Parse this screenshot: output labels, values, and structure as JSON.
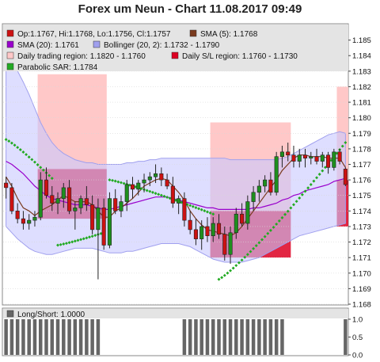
{
  "title": "Forex um Neun - Chart 11.08.2017 09:49",
  "legend": {
    "ohlc": "Op:1.1767, Hi:1.1768, Lo:1.1756, Cl:1.1757",
    "sma5": "SMA (5): 1.1768",
    "sma20": "SMA (20): 1.1761",
    "bollinger": "Bollinger (20, 2): 1.1732 - 1.1790",
    "daily_trading": "Daily trading region: 1.1820 - 1.1760",
    "daily_sl": "Daily S/L region: 1.1760 - 1.1730",
    "sar": "Parabolic SAR: 1.1784",
    "longshort": "Long/Short: 1.0000"
  },
  "colors": {
    "bull": "#1e8f1e",
    "bear": "#cc1111",
    "sma5": "#7a3b1e",
    "sma20": "#9900cc",
    "band_fill": "#c8c8ff",
    "band_line": "#a0a0ee",
    "trading_region": "#ffc8c8",
    "sl_region": "#dd0022",
    "sar": "#22aa22",
    "longshort": "#666666"
  },
  "chart_data": [
    {
      "type": "candlestick",
      "title": "Forex um Neun - Chart 11.08.2017 09:49",
      "ylim": [
        1.168,
        1.186
      ],
      "yticks": [
        "1.168",
        "1.169",
        "1.170",
        "1.171",
        "1.172",
        "1.173",
        "1.174",
        "1.175",
        "1.176",
        "1.177",
        "1.178",
        "1.179",
        "1.180",
        "1.181",
        "1.182",
        "1.183",
        "1.184",
        "1.185"
      ],
      "candles": [
        [
          1.1758,
          1.1762,
          1.1748,
          1.1755
        ],
        [
          1.1755,
          1.1758,
          1.1738,
          1.174
        ],
        [
          1.174,
          1.1745,
          1.1732,
          1.1735
        ],
        [
          1.1735,
          1.174,
          1.1728,
          1.1732
        ],
        [
          1.1732,
          1.1738,
          1.1728,
          1.1734
        ],
        [
          1.1734,
          1.174,
          1.173,
          1.1736
        ],
        [
          1.1736,
          1.1765,
          1.1734,
          1.176
        ],
        [
          1.176,
          1.1768,
          1.1748,
          1.175
        ],
        [
          1.175,
          1.1756,
          1.174,
          1.1745
        ],
        [
          1.1745,
          1.1752,
          1.1738,
          1.1748
        ],
        [
          1.1748,
          1.1758,
          1.1742,
          1.1755
        ],
        [
          1.1755,
          1.176,
          1.1738,
          1.174
        ],
        [
          1.174,
          1.1746,
          1.1728,
          1.1742
        ],
        [
          1.1742,
          1.175,
          1.1738,
          1.1748
        ],
        [
          1.1748,
          1.1756,
          1.174,
          1.1744
        ],
        [
          1.1744,
          1.175,
          1.1725,
          1.1728
        ],
        [
          1.1728,
          1.1748,
          1.1696,
          1.1742
        ],
        [
          1.1742,
          1.1748,
          1.1715,
          1.1718
        ],
        [
          1.1718,
          1.1752,
          1.1716,
          1.1748
        ],
        [
          1.1748,
          1.1754,
          1.1738,
          1.174
        ],
        [
          1.174,
          1.175,
          1.1736,
          1.1746
        ],
        [
          1.1746,
          1.176,
          1.174,
          1.1757
        ],
        [
          1.1757,
          1.1762,
          1.1748,
          1.1754
        ],
        [
          1.1754,
          1.176,
          1.175,
          1.1758
        ],
        [
          1.1758,
          1.1764,
          1.1752,
          1.176
        ],
        [
          1.176,
          1.1765,
          1.1756,
          1.1762
        ],
        [
          1.1762,
          1.177,
          1.1758,
          1.1764
        ],
        [
          1.1764,
          1.1768,
          1.1756,
          1.176
        ],
        [
          1.176,
          1.1764,
          1.1754,
          1.1756
        ],
        [
          1.1756,
          1.1762,
          1.1742,
          1.1745
        ],
        [
          1.1745,
          1.175,
          1.1738,
          1.1748
        ],
        [
          1.1748,
          1.1752,
          1.173,
          1.1734
        ],
        [
          1.1734,
          1.174,
          1.1725,
          1.1728
        ],
        [
          1.1728,
          1.1735,
          1.1718,
          1.1722
        ],
        [
          1.1722,
          1.1734,
          1.1715,
          1.173
        ],
        [
          1.173,
          1.1736,
          1.172,
          1.1724
        ],
        [
          1.1724,
          1.1736,
          1.172,
          1.1732
        ],
        [
          1.1732,
          1.1738,
          1.1722,
          1.1725
        ],
        [
          1.1725,
          1.173,
          1.1708,
          1.1712
        ],
        [
          1.1712,
          1.173,
          1.1706,
          1.1726
        ],
        [
          1.1726,
          1.1742,
          1.1722,
          1.1738
        ],
        [
          1.1738,
          1.1745,
          1.173,
          1.1732
        ],
        [
          1.1732,
          1.175,
          1.1728,
          1.1746
        ],
        [
          1.1746,
          1.1756,
          1.174,
          1.1752
        ],
        [
          1.1752,
          1.176,
          1.1746,
          1.1756
        ],
        [
          1.1756,
          1.1763,
          1.1752,
          1.176
        ],
        [
          1.176,
          1.1765,
          1.175,
          1.1752
        ],
        [
          1.1752,
          1.1778,
          1.175,
          1.1775
        ],
        [
          1.1775,
          1.1782,
          1.1768,
          1.1778
        ],
        [
          1.1778,
          1.1784,
          1.1772,
          1.1776
        ],
        [
          1.1776,
          1.1782,
          1.1768,
          1.1772
        ],
        [
          1.1772,
          1.178,
          1.1768,
          1.1776
        ],
        [
          1.1776,
          1.178,
          1.1768,
          1.1774
        ],
        [
          1.1774,
          1.1778,
          1.177,
          1.1775
        ],
        [
          1.1775,
          1.178,
          1.177,
          1.1772
        ],
        [
          1.1772,
          1.1778,
          1.1768,
          1.1776
        ],
        [
          1.1776,
          1.1778,
          1.1764,
          1.1768
        ],
        [
          1.1768,
          1.178,
          1.1766,
          1.1778
        ],
        [
          1.1778,
          1.178,
          1.177,
          1.1772
        ],
        [
          1.1767,
          1.1768,
          1.1756,
          1.1757
        ]
      ],
      "sma5": [
        1.1762,
        1.1756,
        1.1748,
        1.1742,
        1.174,
        1.1737,
        1.174,
        1.1742,
        1.1744,
        1.1747,
        1.175,
        1.1748,
        1.1746,
        1.1746,
        1.1746,
        1.1744,
        1.174,
        1.1736,
        1.1736,
        1.174,
        1.1742,
        1.1745,
        1.1748,
        1.1752,
        1.1756,
        1.1758,
        1.176,
        1.1761,
        1.176,
        1.1756,
        1.1752,
        1.1747,
        1.174,
        1.1735,
        1.1731,
        1.1728,
        1.1727,
        1.1726,
        1.1725,
        1.1724,
        1.1726,
        1.173,
        1.1735,
        1.174,
        1.1745,
        1.175,
        1.1755,
        1.176,
        1.1766,
        1.177,
        1.1774,
        1.1776,
        1.1776,
        1.1775,
        1.1775,
        1.1775,
        1.1774,
        1.1774,
        1.1774,
        1.1768
      ],
      "sma20": [
        1.1772,
        1.177,
        1.1767,
        1.1764,
        1.176,
        1.1756,
        1.1753,
        1.175,
        1.1748,
        1.1747,
        1.1746,
        1.1745,
        1.1744,
        1.1744,
        1.1744,
        1.1743,
        1.1742,
        1.1741,
        1.1741,
        1.1742,
        1.1743,
        1.1744,
        1.1745,
        1.1746,
        1.1747,
        1.1748,
        1.1749,
        1.1749,
        1.1749,
        1.1748,
        1.1747,
        1.1746,
        1.1745,
        1.1744,
        1.1743,
        1.1742,
        1.1742,
        1.1741,
        1.1741,
        1.1741,
        1.1741,
        1.1741,
        1.1741,
        1.1742,
        1.1742,
        1.1743,
        1.1744,
        1.1745,
        1.1747,
        1.1748,
        1.175,
        1.1751,
        1.1753,
        1.1754,
        1.1755,
        1.1756,
        1.1757,
        1.1759,
        1.176,
        1.1761
      ],
      "bb_upper": [
        1.1838,
        1.1835,
        1.183,
        1.1823,
        1.1815,
        1.1806,
        1.1797,
        1.179,
        1.1784,
        1.178,
        1.1777,
        1.1775,
        1.1773,
        1.1772,
        1.1771,
        1.1771,
        1.177,
        1.177,
        1.177,
        1.177,
        1.177,
        1.1771,
        1.1771,
        1.1772,
        1.1772,
        1.1773,
        1.1773,
        1.1774,
        1.1774,
        1.1774,
        1.1774,
        1.1774,
        1.1774,
        1.1774,
        1.1774,
        1.1774,
        1.1774,
        1.1774,
        1.1774,
        1.1773,
        1.1773,
        1.1773,
        1.1773,
        1.1773,
        1.1773,
        1.1773,
        1.1773,
        1.1773,
        1.1774,
        1.1775,
        1.1777,
        1.1779,
        1.1781,
        1.1783,
        1.1785,
        1.1787,
        1.1789,
        1.179,
        1.1791,
        1.179
      ],
      "bb_lower": [
        1.173,
        1.1726,
        1.1722,
        1.1719,
        1.1716,
        1.1714,
        1.1713,
        1.1712,
        1.1712,
        1.1713,
        1.1714,
        1.1715,
        1.1716,
        1.1716,
        1.1716,
        1.1716,
        1.1715,
        1.1714,
        1.1713,
        1.1713,
        1.1713,
        1.1714,
        1.1714,
        1.1715,
        1.1716,
        1.1717,
        1.1718,
        1.1719,
        1.1719,
        1.1719,
        1.1719,
        1.1718,
        1.1717,
        1.1715,
        1.1713,
        1.1711,
        1.1709,
        1.1708,
        1.1707,
        1.1707,
        1.1707,
        1.1707,
        1.1708,
        1.1709,
        1.171,
        1.1712,
        1.1714,
        1.1716,
        1.1718,
        1.172,
        1.1722,
        1.1724,
        1.1725,
        1.1726,
        1.1727,
        1.1728,
        1.1729,
        1.173,
        1.1731,
        1.1732
      ],
      "sar": [
        1.1786,
        1.1784,
        1.1782,
        1.1779,
        1.1776,
        1.1772,
        1.1769,
        1.1765,
        1.1761,
        null,
        1.1718,
        1.1718,
        1.1719,
        1.172,
        1.1721,
        1.1722,
        1.1724,
        1.1726,
        1.176,
        1.176,
        1.1759,
        1.1758,
        1.1757,
        1.1756,
        1.1755,
        1.1754,
        1.1753,
        1.1752,
        1.1751,
        1.175,
        1.1749,
        1.1748,
        1.1746,
        1.1744,
        1.1742,
        1.174,
        1.1738,
        1.1735,
        1.1732,
        1.1728,
        1.1724,
        1.172,
        1.1716,
        1.1712,
        1.1708,
        1.1705,
        1.1702,
        1.17,
        1.1699,
        1.1699,
        1.1702,
        1.1705,
        1.1709,
        1.1714,
        1.1721,
        1.173,
        1.174,
        1.1752,
        1.177,
        1.1784
      ],
      "sar_segments": [
        {
          "x": [
            0,
            8
          ],
          "y": [
            1.1786,
            1.1761
          ]
        },
        {
          "x": [
            9,
            17
          ],
          "y": [
            1.1718,
            1.1726
          ]
        },
        {
          "x": [
            18,
            36
          ],
          "y": [
            1.176,
            1.1738
          ]
        },
        {
          "x": [
            37,
            59
          ],
          "y": [
            1.1696,
            1.1784
          ]
        }
      ],
      "trading_regions": [
        {
          "x": [
            6,
            17
          ],
          "y": [
            1.1767,
            1.1828
          ]
        },
        {
          "x": [
            36,
            49
          ],
          "y": [
            1.1728,
            1.1797
          ]
        },
        {
          "x": [
            58,
            59
          ],
          "y": [
            1.176,
            1.182
          ]
        }
      ],
      "sl_regions": [
        {
          "x": [
            6,
            17
          ],
          "y": [
            1.1735,
            1.1767
          ]
        },
        {
          "x": [
            36,
            49
          ],
          "y": [
            1.171,
            1.174
          ]
        },
        {
          "x": [
            58,
            59
          ],
          "y": [
            1.173,
            1.176
          ]
        }
      ]
    },
    {
      "type": "bar",
      "title": "Long/Short: 1.0000",
      "ylim": [
        0,
        1
      ],
      "yticks": [
        "0.0",
        "0.5",
        "1.0"
      ],
      "values": [
        1,
        1,
        1,
        1,
        1,
        1,
        1,
        1,
        1,
        1,
        1,
        1,
        1,
        1,
        1,
        1,
        1,
        0,
        0,
        0,
        0,
        0,
        0,
        0,
        0,
        0,
        0,
        0,
        0,
        0,
        0,
        1,
        1,
        1,
        1,
        1,
        1,
        1,
        1,
        1,
        1,
        1,
        1,
        1,
        1,
        1,
        1,
        1,
        1,
        0,
        0,
        0,
        0,
        0,
        0,
        0,
        0,
        0,
        0,
        1
      ]
    }
  ]
}
